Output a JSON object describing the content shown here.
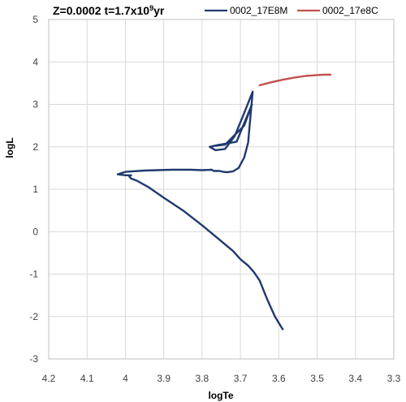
{
  "chart_data": {
    "type": "line",
    "title_main": "Z=0.0002 t=1.7x10",
    "title_exp": "9",
    "title_tail": "yr",
    "xlabel": "logTe",
    "ylabel": "logL",
    "xlim": [
      4.2,
      3.3
    ],
    "ylim": [
      -3,
      5
    ],
    "x_ticks": [
      "4.2",
      "4.1",
      "4",
      "3.9",
      "3.8",
      "3.7",
      "3.6",
      "3.5",
      "3.4",
      "3.3"
    ],
    "y_ticks": [
      "-3",
      "-2",
      "-1",
      "0",
      "1",
      "2",
      "3",
      "4",
      "5"
    ],
    "grid": "horizontal-and-vertical",
    "legend_position": "top",
    "series": [
      {
        "name": "0002_17E8M",
        "color": "#1f3a6e",
        "x": [
          3.59,
          3.61,
          3.63,
          3.65,
          3.665,
          3.68,
          3.7,
          3.72,
          3.74,
          3.76,
          3.8,
          3.85,
          3.9,
          3.94,
          3.97,
          3.985,
          3.99,
          3.985,
          4.0,
          4.02,
          4.0,
          3.95,
          3.88,
          3.83,
          3.8,
          3.775,
          3.77,
          3.755,
          3.745,
          3.735,
          3.72,
          3.705,
          3.69,
          3.68,
          3.675,
          3.668,
          3.69,
          3.715,
          3.74,
          3.765,
          3.78,
          3.76,
          3.71,
          3.67,
          3.69,
          3.74,
          3.77
        ],
        "y": [
          -2.3,
          -2.0,
          -1.6,
          -1.15,
          -0.95,
          -0.8,
          -0.65,
          -0.45,
          -0.3,
          -0.15,
          0.15,
          0.5,
          0.8,
          1.05,
          1.2,
          1.25,
          1.3,
          1.33,
          1.33,
          1.35,
          1.41,
          1.44,
          1.46,
          1.46,
          1.45,
          1.46,
          1.43,
          1.43,
          1.41,
          1.4,
          1.42,
          1.5,
          1.75,
          2.1,
          2.6,
          3.3,
          2.8,
          2.25,
          1.95,
          1.92,
          2.0,
          2.04,
          2.12,
          3.0,
          2.5,
          2.05,
          2.02
        ]
      },
      {
        "name": "0002_17e8C",
        "color": "#c0504d",
        "x": [
          3.65,
          3.62,
          3.59,
          3.56,
          3.53,
          3.5,
          3.48,
          3.465
        ],
        "y": [
          3.45,
          3.52,
          3.58,
          3.63,
          3.67,
          3.69,
          3.7,
          3.7
        ]
      }
    ]
  }
}
